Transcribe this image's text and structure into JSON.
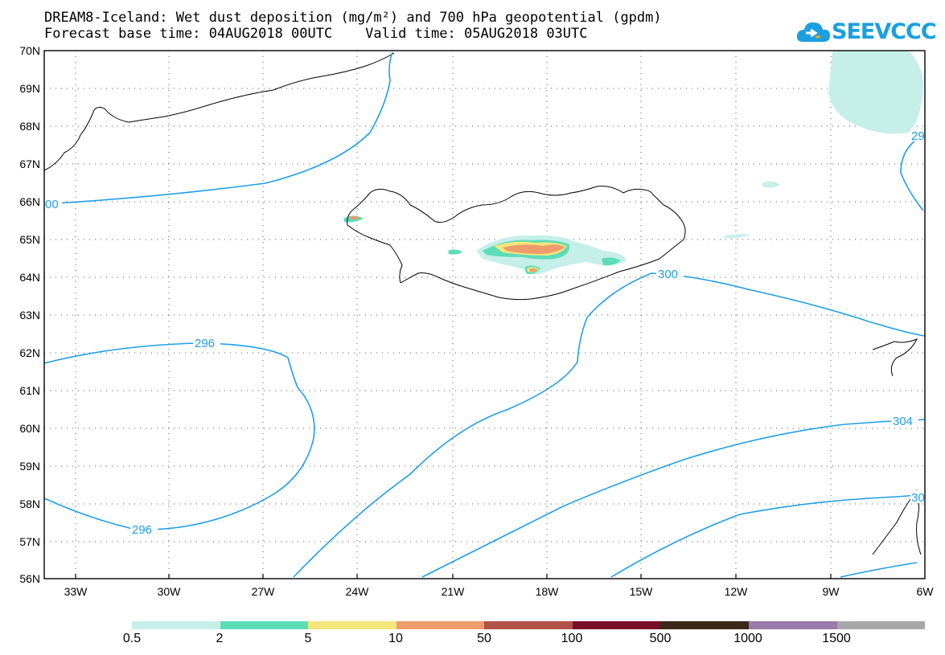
{
  "title": {
    "line1": "DREAM8-Iceland: Wet dust deposition (mg/m²) and 700 hPa geopotential (gpdm)",
    "line2": "Forecast base time: 04AUG2018 00UTC    Valid time: 05AUG2018 03UTC"
  },
  "logo": {
    "text": "SEEVCCC",
    "icon": "cloud-icon",
    "color": "#1a9fe0"
  },
  "axes": {
    "lat_labels": [
      "70N",
      "69N",
      "68N",
      "67N",
      "66N",
      "65N",
      "64N",
      "63N",
      "62N",
      "61N",
      "60N",
      "59N",
      "58N",
      "57N",
      "56N"
    ],
    "lon_labels": [
      "33W",
      "30W",
      "27W",
      "24W",
      "21W",
      "18W",
      "15W",
      "12W",
      "9W",
      "6W"
    ]
  },
  "contours": {
    "color": "#1f9fe6",
    "labels": [
      "00",
      "296",
      "296",
      "300",
      "304",
      "29",
      "30"
    ]
  },
  "legend": {
    "colors": [
      "#c6efe9",
      "#5ddcb8",
      "#f3e67b",
      "#ee9c6c",
      "#b15248",
      "#7a0f2b",
      "#3a2716",
      "#9a7bab",
      "#a8a8a8"
    ],
    "labels": [
      "0.5",
      "2",
      "5",
      "10",
      "50",
      "100",
      "500",
      "1000",
      "1500"
    ]
  }
}
